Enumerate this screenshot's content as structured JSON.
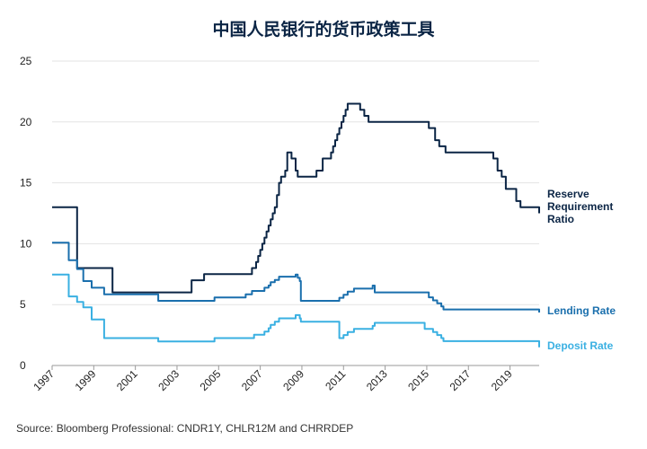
{
  "chart_data": {
    "type": "line",
    "title": "中国人民银行的货币政策工具",
    "source": "Source: Bloomberg Professional: CNDR1Y, CHLR12M and CHRRDEP",
    "xlabel": "",
    "ylabel": "",
    "xlim": [
      1997,
      2020.4
    ],
    "ylim": [
      0,
      25
    ],
    "y_ticks": [
      0,
      5,
      10,
      15,
      20,
      25
    ],
    "x_ticks": [
      "1997",
      "1999",
      "2001",
      "2003",
      "2005",
      "2007",
      "2009",
      "2011",
      "2013",
      "2015",
      "2017",
      "2019"
    ],
    "grid": true,
    "legend": "direct labels at right end of each line",
    "series": [
      {
        "name": "Reserve Requirement Ratio",
        "label_lines": [
          "Reserve",
          "Requirement",
          "Ratio"
        ],
        "color": "#0b2545",
        "step": true,
        "x": [
          1997.0,
          1998.2,
          1999.9,
          2003.7,
          2004.3,
          2006.6,
          2006.8,
          2006.9,
          2007.0,
          2007.1,
          2007.2,
          2007.3,
          2007.4,
          2007.5,
          2007.6,
          2007.7,
          2007.8,
          2007.9,
          2008.0,
          2008.2,
          2008.3,
          2008.5,
          2008.7,
          2008.8,
          2008.9,
          2009.7,
          2010.0,
          2010.4,
          2010.5,
          2010.6,
          2010.7,
          2010.8,
          2010.9,
          2011.0,
          2011.1,
          2011.2,
          2011.3,
          2011.4,
          2011.8,
          2012.0,
          2012.2,
          2014.9,
          2015.1,
          2015.4,
          2015.6,
          2015.9,
          2018.2,
          2018.4,
          2018.6,
          2018.8,
          2019.3,
          2019.5,
          2020.4
        ],
        "values": [
          13,
          8,
          6,
          7,
          7.5,
          8,
          8.5,
          9,
          9.5,
          10,
          10.5,
          11,
          11.5,
          12,
          12.5,
          13,
          14,
          15,
          15.5,
          16,
          17.5,
          17,
          16,
          15.5,
          15.5,
          16,
          17,
          17.5,
          18,
          18.5,
          19,
          19.5,
          20,
          20.5,
          21,
          21.5,
          21.5,
          21.5,
          21,
          20.5,
          20,
          20,
          19.5,
          18.5,
          18,
          17.5,
          17,
          16,
          15.5,
          14.5,
          13.5,
          13,
          12.5
        ]
      },
      {
        "name": "Lending Rate",
        "label_lines": [
          "Lending Rate"
        ],
        "color": "#1a6fad",
        "step": true,
        "x": [
          1997.0,
          1997.8,
          1998.2,
          1998.5,
          1998.9,
          1999.5,
          2002.1,
          2004.8,
          2006.3,
          2006.6,
          2007.2,
          2007.4,
          2007.5,
          2007.7,
          2007.9,
          2008.7,
          2008.8,
          2008.9,
          2008.95,
          2010.8,
          2011.0,
          2011.2,
          2011.5,
          2012.4,
          2012.5,
          2014.9,
          2015.1,
          2015.3,
          2015.5,
          2015.7,
          2015.8,
          2020.4
        ],
        "values": [
          10.08,
          8.64,
          7.92,
          6.93,
          6.39,
          5.85,
          5.31,
          5.58,
          5.85,
          6.12,
          6.39,
          6.57,
          6.84,
          7.02,
          7.29,
          7.47,
          7.2,
          6.93,
          5.31,
          5.56,
          5.81,
          6.06,
          6.31,
          6.56,
          6.0,
          6.0,
          5.6,
          5.35,
          5.1,
          4.85,
          4.6,
          4.35
        ]
      },
      {
        "name": "Deposit Rate",
        "label_lines": [
          "Deposit Rate"
        ],
        "color": "#3ab0e2",
        "step": true,
        "x": [
          1997.0,
          1997.8,
          1998.2,
          1998.5,
          1998.9,
          1999.5,
          2002.1,
          2004.8,
          2006.7,
          2007.2,
          2007.4,
          2007.5,
          2007.7,
          2007.9,
          2008.7,
          2008.8,
          2008.9,
          2008.95,
          2010.8,
          2011.0,
          2011.2,
          2011.5,
          2012.4,
          2012.5,
          2014.9,
          2015.1,
          2015.3,
          2015.5,
          2015.7,
          2015.8,
          2020.4
        ],
        "values": [
          7.47,
          5.67,
          5.22,
          4.77,
          3.78,
          2.25,
          1.98,
          2.25,
          2.52,
          2.79,
          3.06,
          3.33,
          3.6,
          3.87,
          4.14,
          4.14,
          3.87,
          3.6,
          2.25,
          2.5,
          2.75,
          3.0,
          3.25,
          3.5,
          3.0,
          3.0,
          2.75,
          2.5,
          2.25,
          2.0,
          1.5
        ]
      }
    ]
  }
}
